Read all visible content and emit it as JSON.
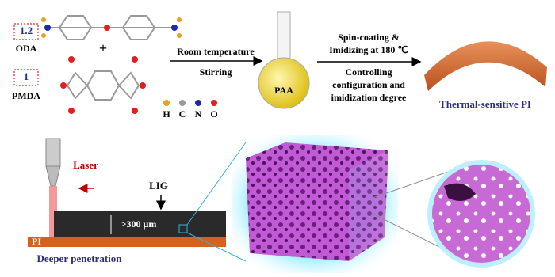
{
  "reagents": [
    {
      "ratio": "1.2",
      "label": "ODA"
    },
    {
      "ratio": "1",
      "label": "PMDA"
    }
  ],
  "plus": "+",
  "atom_legend": [
    "H",
    "C",
    "N",
    "O"
  ],
  "step1": {
    "above": "Room temperature",
    "below": "Stirring"
  },
  "intermediate": "PAA",
  "step2": {
    "above": [
      "Spin-coating  &",
      "Imidizing at 180 ℃"
    ],
    "below": [
      "Controlling",
      "configuration and",
      "imidization degree"
    ]
  },
  "product": "Thermal-sensitive PI",
  "laser": {
    "label": "Laser",
    "layer": "LIG",
    "thickness": ">300 μm",
    "substrate": "PI",
    "note": "Deeper penetration"
  }
}
